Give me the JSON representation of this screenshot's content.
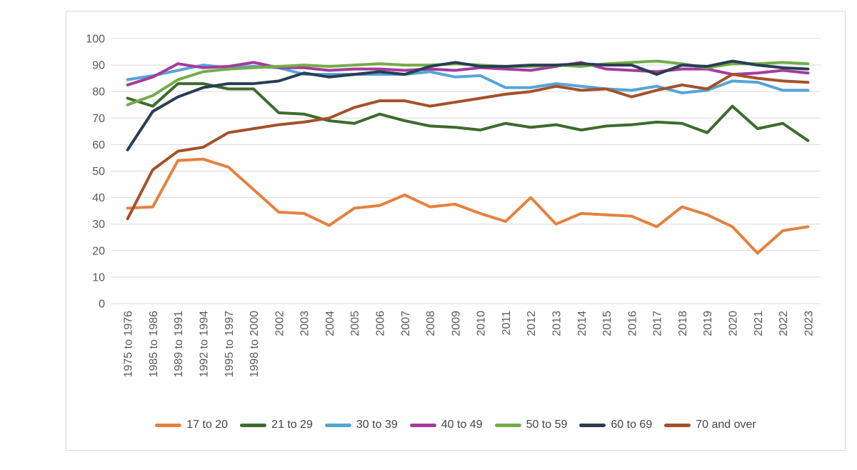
{
  "chart_data": {
    "type": "line",
    "categories": [
      "1975 to 1976",
      "1985 to 1986",
      "1989 to 1991",
      "1992 to 1994",
      "1995 to 1997",
      "1998 to 2000",
      "2002",
      "2003",
      "2004",
      "2005",
      "2006",
      "2007",
      "2008",
      "2009",
      "2010",
      "2011",
      "2012",
      "2013",
      "2014",
      "2015",
      "2016",
      "2017",
      "2018",
      "2019",
      "2020",
      "2021",
      "2022",
      "2023"
    ],
    "series": [
      {
        "name": "17 to 20",
        "color": "#E5813D",
        "values": [
          36,
          36.5,
          54,
          54.5,
          51.5,
          43,
          34.5,
          34,
          29.5,
          36,
          37,
          41,
          36.5,
          37.5,
          34,
          31,
          40,
          30,
          34,
          33.5,
          33,
          29,
          36.5,
          33.5,
          29,
          19,
          27.5,
          29
        ]
      },
      {
        "name": "21 to 29",
        "color": "#3D6B2E",
        "values": [
          77.5,
          74.5,
          83,
          83,
          81,
          81,
          72,
          71.5,
          69,
          68,
          71.5,
          69,
          67,
          66.5,
          65.5,
          68,
          66.5,
          67.5,
          65.5,
          67,
          67.5,
          68.5,
          68,
          64.5,
          74.5,
          66,
          68,
          61.5
        ]
      },
      {
        "name": "30 to 39",
        "color": "#55A4D8",
        "values": [
          84.5,
          86,
          88,
          90,
          89,
          89.5,
          89,
          86.5,
          86.5,
          86.5,
          86.5,
          86.5,
          87.5,
          85.5,
          86,
          81.5,
          81.5,
          83,
          82,
          81,
          80.5,
          82,
          79.5,
          80.5,
          84,
          83.5,
          80.5,
          80.5
        ]
      },
      {
        "name": "40 to 49",
        "color": "#A43C9C",
        "values": [
          82.5,
          85.5,
          90.5,
          89,
          89.5,
          91,
          89,
          89,
          88,
          88.5,
          88.5,
          88,
          88.5,
          88,
          89,
          88.5,
          88,
          89.5,
          91,
          88.5,
          88,
          87.5,
          88.5,
          88.5,
          86.5,
          87,
          88,
          87
        ]
      },
      {
        "name": "50 to 59",
        "color": "#74AC48",
        "values": [
          75,
          78.5,
          84.5,
          87.5,
          88.5,
          89,
          89.5,
          90,
          89.5,
          90,
          90.5,
          90,
          90,
          90.5,
          90,
          89.5,
          89.5,
          90,
          89.5,
          90.5,
          91,
          91.5,
          90.5,
          89,
          90.5,
          90.5,
          91,
          90.5
        ]
      },
      {
        "name": "60 to 69",
        "color": "#273E53",
        "values": [
          58,
          72.5,
          78,
          81.5,
          83,
          83,
          84,
          87,
          85.5,
          86.5,
          87.5,
          86.5,
          89.5,
          91,
          89.5,
          89.5,
          90,
          90,
          90.5,
          90,
          90,
          86.5,
          90,
          89.5,
          91.5,
          90,
          89,
          88.5
        ]
      },
      {
        "name": "70 and over",
        "color": "#A4512B",
        "values": [
          32,
          50.5,
          57.5,
          59,
          64.5,
          66,
          67.5,
          68.5,
          70,
          74,
          76.5,
          76.5,
          74.5,
          76,
          77.5,
          79,
          80,
          82,
          80.5,
          81,
          78,
          80.5,
          82.5,
          81,
          86.5,
          85,
          84,
          83.5
        ]
      }
    ],
    "y_axis": {
      "min": 0,
      "max": 100,
      "step": 10,
      "ticks": [
        0,
        10,
        20,
        30,
        40,
        50,
        60,
        70,
        80,
        90,
        100
      ]
    },
    "grid": true,
    "legend_position": "bottom",
    "colors": {
      "gridline": "#d9d9d9",
      "tick_label": "#595959",
      "legend_text": "#444444",
      "frame_border": "#d8d8d8",
      "background": "#ffffff"
    }
  }
}
